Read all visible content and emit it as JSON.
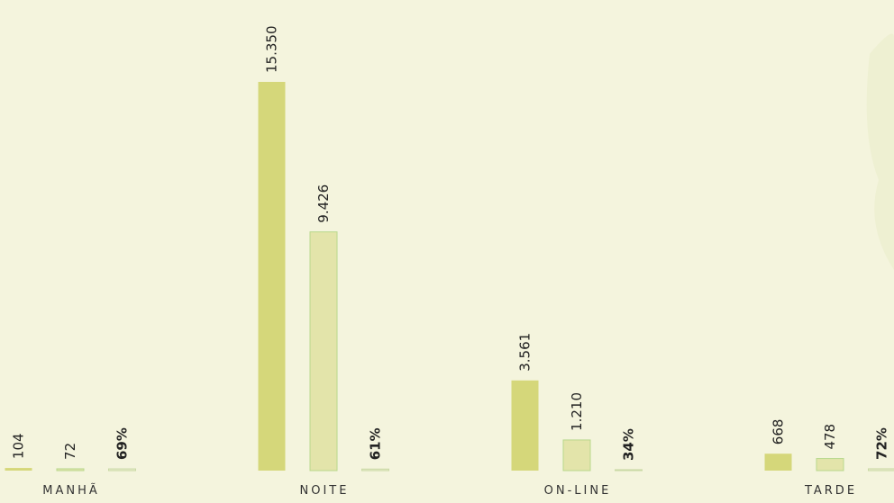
{
  "chart_data": {
    "type": "bar",
    "categories": [
      "MANHÃ",
      "NOITE",
      "ON-LINE",
      "TARDE"
    ],
    "series": [
      {
        "color": "#d5d77a",
        "values": [
          104,
          15350,
          3561,
          668
        ],
        "value_labels": [
          "104",
          "15.350",
          "3.561",
          "668"
        ],
        "bold": false
      },
      {
        "color": "#e3e4aa",
        "values": [
          72,
          9426,
          1210,
          478
        ],
        "value_labels": [
          "72",
          "9.426",
          "1.210",
          "478"
        ],
        "bold": false
      },
      {
        "color": "#e9eccc",
        "values": [
          69,
          61,
          34,
          72
        ],
        "value_labels": [
          "69%",
          "61%",
          "34%",
          "72%"
        ],
        "bold": true
      }
    ]
  }
}
